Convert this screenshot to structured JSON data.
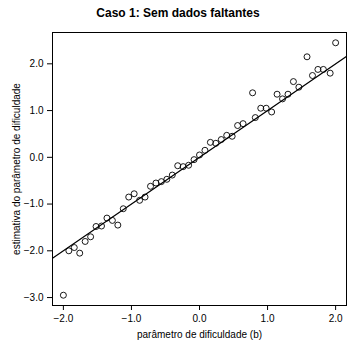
{
  "chart_data": {
    "type": "scatter",
    "title": "Caso 1: Sem dados faltantes",
    "x_label": "parâmetro de dificuldade (b)",
    "y_label": "estimativa do parâmetro de dificuldade",
    "xlim": [
      -2.16,
      2.16
    ],
    "ylim": [
      -3.17,
      2.67
    ],
    "xticks": [
      -2,
      -1,
      0,
      1,
      2
    ],
    "yticks": [
      -3,
      -2,
      -1,
      0,
      1,
      2
    ],
    "grid": false,
    "series": [
      {
        "type": "scatter",
        "marker": "open circle",
        "color": "#000000",
        "x": [
          -2.0,
          -1.92,
          -1.84,
          -1.76,
          -1.68,
          -1.6,
          -1.52,
          -1.44,
          -1.36,
          -1.28,
          -1.2,
          -1.12,
          -1.04,
          -0.96,
          -0.88,
          -0.8,
          -0.72,
          -0.64,
          -0.56,
          -0.48,
          -0.4,
          -0.32,
          -0.24,
          -0.16,
          -0.08,
          0.0,
          0.08,
          0.16,
          0.24,
          0.32,
          0.4,
          0.48,
          0.56,
          0.64,
          0.78,
          0.82,
          0.9,
          0.98,
          1.06,
          1.14,
          1.22,
          1.3,
          1.38,
          1.46,
          1.58,
          1.66,
          1.74,
          1.82,
          1.92,
          2.0
        ],
        "values": [
          -2.95,
          -2.0,
          -1.93,
          -2.05,
          -1.8,
          -1.7,
          -1.48,
          -1.47,
          -1.3,
          -1.35,
          -1.45,
          -1.1,
          -0.85,
          -0.78,
          -0.92,
          -0.85,
          -0.62,
          -0.55,
          -0.52,
          -0.47,
          -0.38,
          -0.18,
          -0.2,
          -0.17,
          -0.05,
          0.05,
          0.15,
          0.32,
          0.3,
          0.38,
          0.47,
          0.45,
          0.68,
          0.72,
          1.38,
          0.85,
          1.05,
          1.05,
          0.97,
          1.35,
          1.25,
          1.35,
          1.62,
          1.5,
          2.15,
          1.75,
          1.88,
          1.88,
          1.8,
          2.45
        ]
      },
      {
        "type": "line",
        "line_style": "solid",
        "color": "#000000",
        "x": [
          -2.16,
          2.16
        ],
        "values": [
          -2.16,
          2.16
        ]
      }
    ]
  }
}
